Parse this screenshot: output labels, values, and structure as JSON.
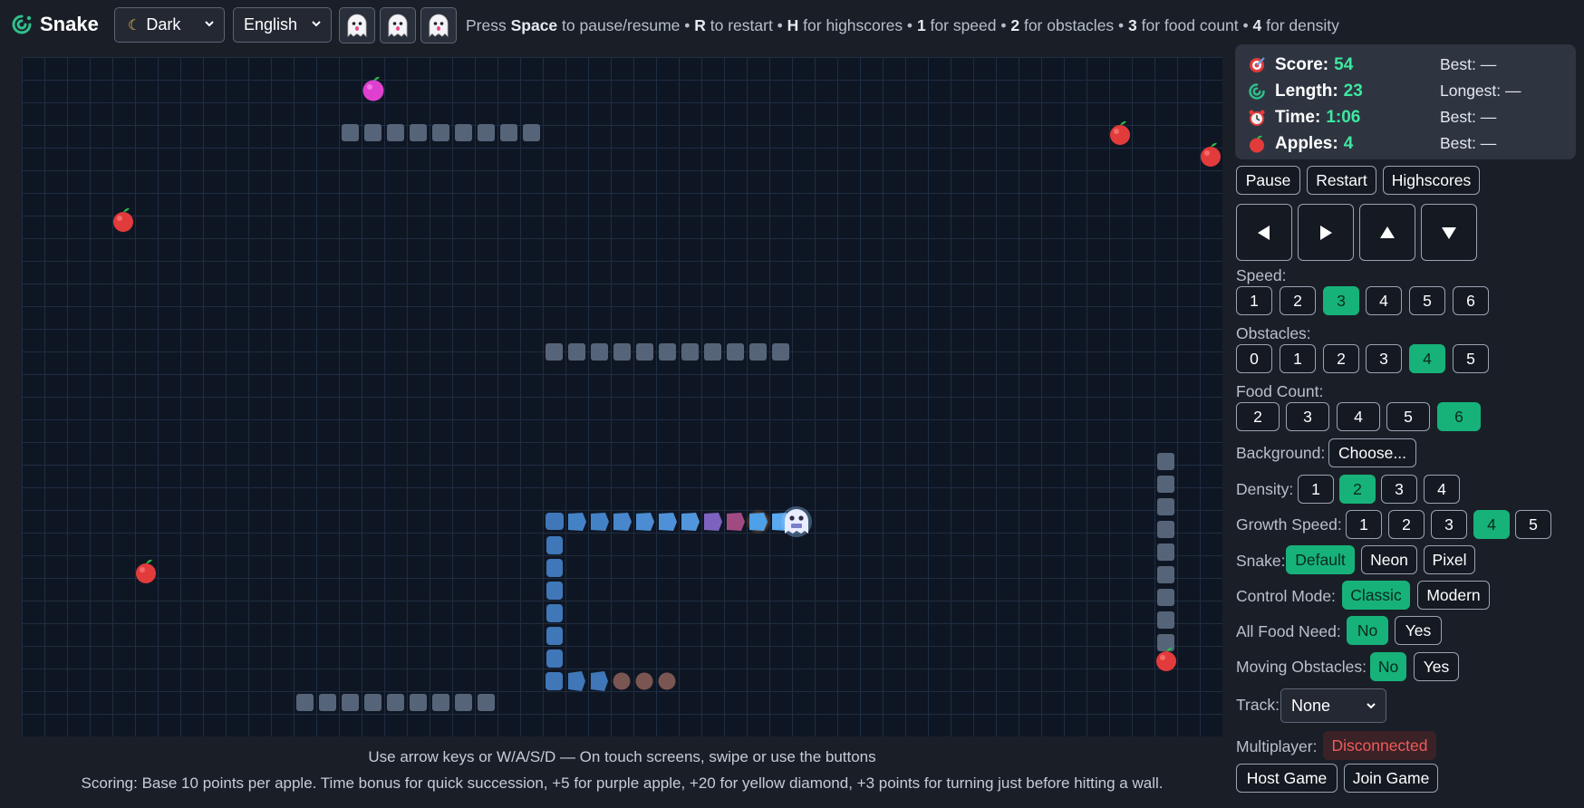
{
  "app": {
    "title": "Snake"
  },
  "header": {
    "theme_value": "Dark",
    "language_value": "English",
    "ghost_buttons": [
      "ghost",
      "ghost",
      "ghost"
    ],
    "hint": {
      "p1": "Press ",
      "k1": "Space",
      "p2": " to pause/resume • ",
      "k2": "R",
      "p3": " to restart • ",
      "k3": "H",
      "p4": " for highscores • ",
      "k4": "1",
      "p5": " for speed • ",
      "k5": "2",
      "p6": " for obstacles • ",
      "k6": "3",
      "p7": " for food count • ",
      "k7": "4",
      "p8": " for density"
    }
  },
  "stats": {
    "score": {
      "label": "Score:",
      "value": "54",
      "best": "Best: —"
    },
    "length": {
      "label": "Length:",
      "value": "23",
      "best": "Longest: —"
    },
    "time": {
      "label": "Time:",
      "value": "1:06",
      "best": "Best: —"
    },
    "apples": {
      "label": "Apples:",
      "value": "4",
      "best": "Best: —"
    }
  },
  "controls": {
    "pause": "Pause",
    "restart": "Restart",
    "highscores": "Highscores",
    "arrows": [
      "◀",
      "▶",
      "▲",
      "▼"
    ]
  },
  "settings": {
    "speed": {
      "label": "Speed:",
      "options": [
        "1",
        "2",
        "3",
        "4",
        "5",
        "6"
      ],
      "selected": "3"
    },
    "obstacles": {
      "label": "Obstacles:",
      "options": [
        "0",
        "1",
        "2",
        "3",
        "4",
        "5"
      ],
      "selected": "4"
    },
    "food_count": {
      "label": "Food Count:",
      "options": [
        "2",
        "3",
        "4",
        "5",
        "6"
      ],
      "selected": "6"
    },
    "background": {
      "label": "Background:",
      "button": "Choose..."
    },
    "density": {
      "label": "Density:",
      "options": [
        "1",
        "2",
        "3",
        "4"
      ],
      "selected": "2"
    },
    "growth_speed": {
      "label": "Growth Speed:",
      "options": [
        "1",
        "2",
        "3",
        "4",
        "5"
      ],
      "selected": "4"
    },
    "snake": {
      "label": "Snake:",
      "options": [
        "Default",
        "Neon",
        "Pixel"
      ],
      "selected": "Default"
    },
    "control_mode": {
      "label": "Control Mode:",
      "options": [
        "Classic",
        "Modern"
      ],
      "selected": "Classic"
    },
    "all_food_need": {
      "label": "All Food Need:",
      "options": [
        "No",
        "Yes"
      ],
      "selected": "No"
    },
    "moving_obstacles": {
      "label": "Moving Obstacles:",
      "options": [
        "No",
        "Yes"
      ],
      "selected": "No"
    },
    "track": {
      "label": "Track:",
      "value": "None"
    },
    "multiplayer": {
      "label": "Multiplayer:",
      "status": "Disconnected"
    },
    "host": "Host Game",
    "join": "Join Game"
  },
  "footer": {
    "line1": "Use arrow keys or W/A/S/D — On touch screens, swipe or use the buttons",
    "line2": "Scoring: Base 10 points per apple. Time bonus for quick succession, +5 for purple apple, +20 for yellow diamond, +3 points for turning just before hitting a wall."
  },
  "colors": {
    "accent": "#16b27a",
    "score_value": "#3ee7a0",
    "disconnected": "#f05a5a",
    "board_bg": "#0f1623",
    "grid": "#1e2d42",
    "obstacle": "#566479",
    "snake_body": "#4a8ad4",
    "apple": "#e23b3b",
    "purple_apple": "#e040d0"
  },
  "icons": {
    "logo": "snake-icon",
    "score": "target-icon",
    "length": "snake-icon",
    "time": "alarm-clock-icon",
    "apples": "apple-icon",
    "theme": "moon-icon",
    "head": "ghost-face-icon"
  }
}
